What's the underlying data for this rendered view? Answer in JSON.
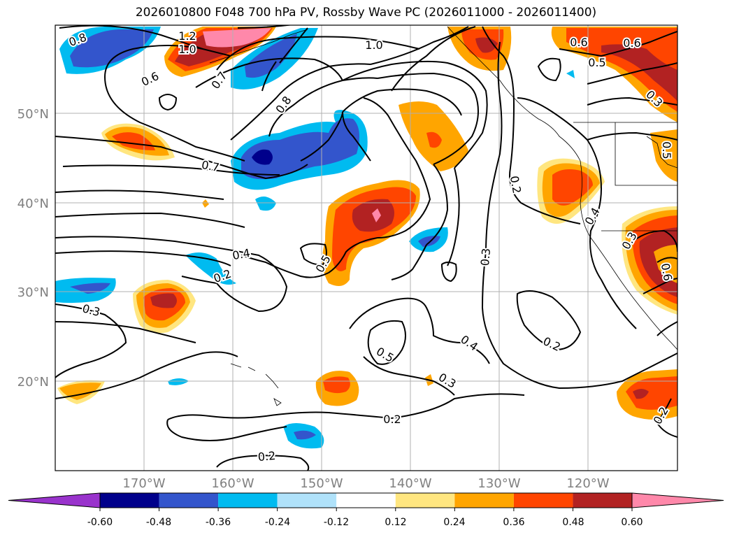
{
  "title": "2026010800 F048 700 hPa PV, Rossby Wave PC (2026011000 - 2026011400)",
  "map": {
    "lat_labels": [
      "50°N",
      "40°N",
      "30°N",
      "20°N"
    ],
    "lat_values": [
      50,
      40,
      30,
      20
    ],
    "lon_labels": [
      "170°W",
      "160°W",
      "150°W",
      "140°W",
      "130°W",
      "120°W"
    ],
    "lon_values": [
      -170,
      -160,
      -150,
      -140,
      -130,
      -120
    ],
    "lon_range": [
      -180,
      -110
    ],
    "lat_range": [
      10,
      60
    ],
    "gridlines": true,
    "label_color": "#808080",
    "contour_labels": [
      "0.8",
      "1.2",
      "1.0",
      "0.6",
      "0.7",
      "0.8",
      "1.0",
      "0.6",
      "0.6",
      "0.5",
      "0.3",
      "0.5",
      "0.7",
      "0.4",
      "0.2",
      "0.5",
      "0.3",
      "0.4",
      "0.2",
      "0.3",
      "0.2",
      "0.2",
      "0.5",
      "0.4",
      "0.3",
      "0.2",
      "0.3",
      "0.6",
      "0.2"
    ]
  },
  "colorbar": {
    "ticks": [
      "-0.60",
      "-0.48",
      "-0.36",
      "-0.24",
      "-0.12",
      "0.12",
      "0.24",
      "0.36",
      "0.48",
      "0.60"
    ],
    "tick_values": [
      -0.6,
      -0.48,
      -0.36,
      -0.24,
      -0.12,
      0.12,
      0.24,
      0.36,
      0.48,
      0.6
    ],
    "colors": [
      "#9933cc",
      "#00008b",
      "#3355cc",
      "#00bbf0",
      "#b0e2fa",
      "#ffffff",
      "#ffe680",
      "#ffa500",
      "#ff4500",
      "#b22222",
      "#ff88aa"
    ],
    "extend": "both"
  }
}
